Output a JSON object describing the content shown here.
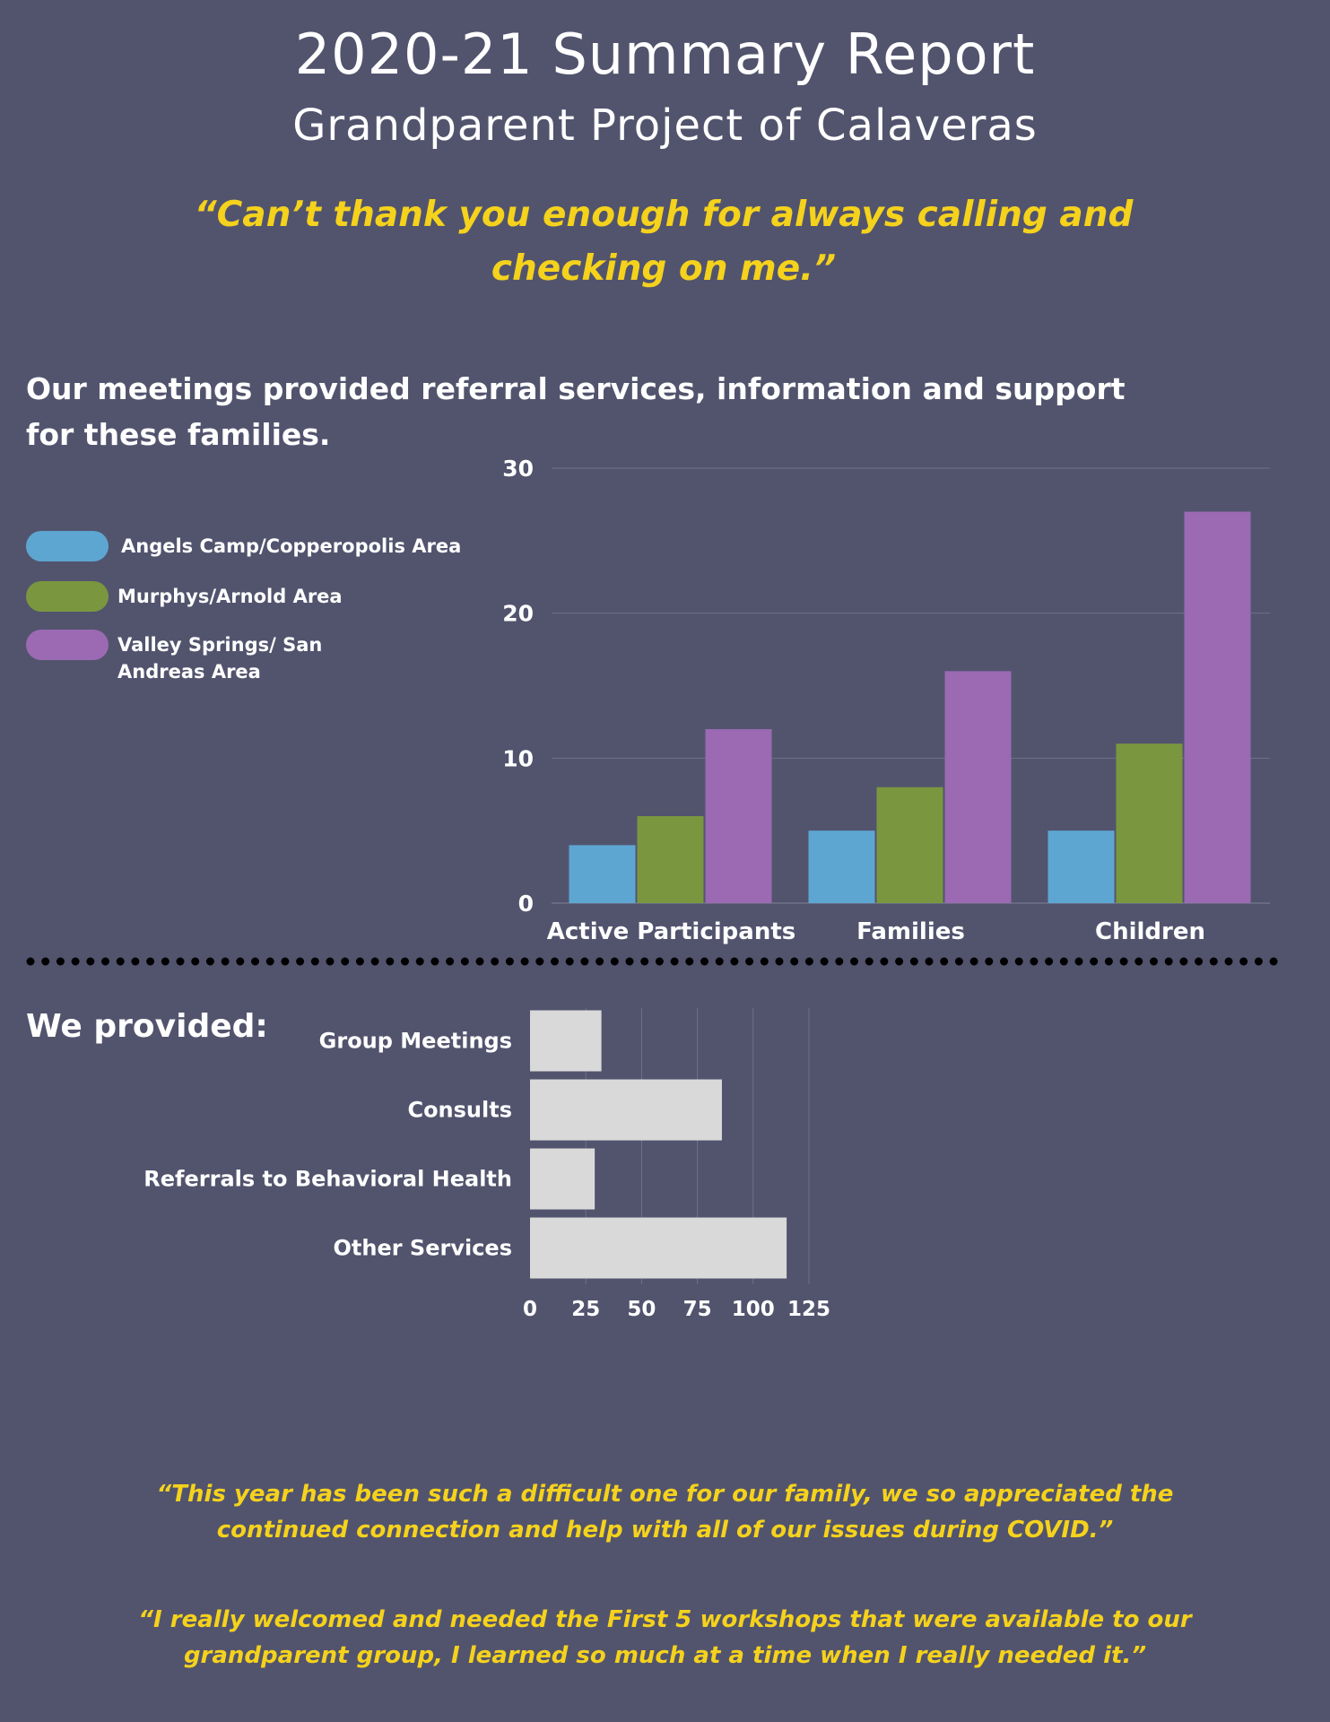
{
  "header": {
    "title": "2020-21 Summary Report",
    "subtitle": "Grandparent Project of Calaveras"
  },
  "quotes": {
    "top": "“Can’t thank you enough for always calling and checking on me.”",
    "bottom_1": "“This year has been such a difficult one for our family, we so appreciated the continued connection and help with all of our issues during COVID.”",
    "bottom_2": "“I really welcomed and needed the First 5 workshops that were available to our grandparent group, I learned so much at a time when I really needed it.”"
  },
  "section_text": "Our meetings provided referral services, information and support for these families.",
  "provided_label": "We provided:",
  "colors": {
    "background": "#52546e",
    "quote": "#f5d21c",
    "blue": "#5ea6d2",
    "green": "#7a973f",
    "purple": "#9b6ab3",
    "gray_bar": "#d9d9d9",
    "grid": "#6f7189"
  },
  "chart_data": [
    {
      "type": "bar",
      "categories": [
        "Active Participants",
        "Families",
        "Children"
      ],
      "series": [
        {
          "name": "Angels Camp/Copperopolis Area",
          "values": [
            4,
            5,
            5
          ],
          "color": "#5ea6d2"
        },
        {
          "name": "Murphys/Arnold Area",
          "values": [
            6,
            8,
            11
          ],
          "color": "#7a973f"
        },
        {
          "name": "Valley Springs/ San Andreas Area",
          "values": [
            12,
            16,
            27
          ],
          "color": "#9b6ab3"
        }
      ],
      "yticks": [
        0,
        10,
        20,
        30
      ],
      "ylim": [
        0,
        30
      ],
      "legend": "left",
      "grid": true
    },
    {
      "type": "bar",
      "orientation": "horizontal",
      "categories": [
        "Group Meetings",
        "Consults",
        "Referrals to Behavioral Health",
        "Other Services"
      ],
      "values": [
        32,
        86,
        29,
        115
      ],
      "color": "#d9d9d9",
      "xticks": [
        0,
        25,
        50,
        75,
        100,
        125
      ],
      "xlim": [
        0,
        125
      ],
      "grid": true
    }
  ]
}
